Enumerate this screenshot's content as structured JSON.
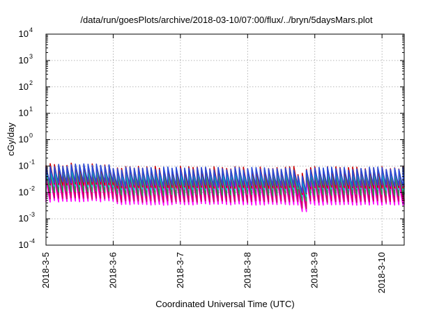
{
  "chart_data": {
    "type": "line",
    "title": "/data/run/goesPlots/archive/2018-03-10/07:00/flux/../bryn/5daysMars.plot",
    "xlabel": "Coordinated Universal Time (UTC)",
    "ylabel": "cGy/day",
    "yscale": "log",
    "ylim": [
      0.0001,
      10000
    ],
    "xlim_days": [
      0,
      5.33
    ],
    "grid": true,
    "x_ticks": [
      {
        "label": "2018-3-5",
        "day": 0
      },
      {
        "label": "2018-3-6",
        "day": 1
      },
      {
        "label": "2018-3-7",
        "day": 2
      },
      {
        "label": "2018-3-8",
        "day": 3
      },
      {
        "label": "2018-3-9",
        "day": 4
      },
      {
        "label": "2018-3-10",
        "day": 5
      }
    ],
    "y_ticks": [
      {
        "base": "10",
        "exp": "-4",
        "value": 0.0001
      },
      {
        "base": "10",
        "exp": "-3",
        "value": 0.001
      },
      {
        "base": "10",
        "exp": "-2",
        "value": 0.01
      },
      {
        "base": "10",
        "exp": "-1",
        "value": 0.1
      },
      {
        "base": "10",
        "exp": "0",
        "value": 1
      },
      {
        "base": "10",
        "exp": "1",
        "value": 10
      },
      {
        "base": "10",
        "exp": "2",
        "value": 100
      },
      {
        "base": "10",
        "exp": "3",
        "value": 1000
      },
      {
        "base": "10",
        "exp": "4",
        "value": 10000
      }
    ],
    "sawtooth_period_days": 0.0625,
    "series": [
      {
        "color": "#ff00ff",
        "peak": 0.03,
        "trough": 0.0035
      },
      {
        "color": "#cc0066",
        "peak": 0.045,
        "trough": 0.0045
      },
      {
        "color": "#2e8b57",
        "peak": 0.055,
        "trough": 0.008
      },
      {
        "color": "#00cccc",
        "peak": 0.06,
        "trough": 0.013
      },
      {
        "color": "#cc0000",
        "peak": 0.085,
        "trough": 0.015
      },
      {
        "color": "#2a4bd7",
        "peak": 0.08,
        "trough": 0.018
      }
    ]
  }
}
